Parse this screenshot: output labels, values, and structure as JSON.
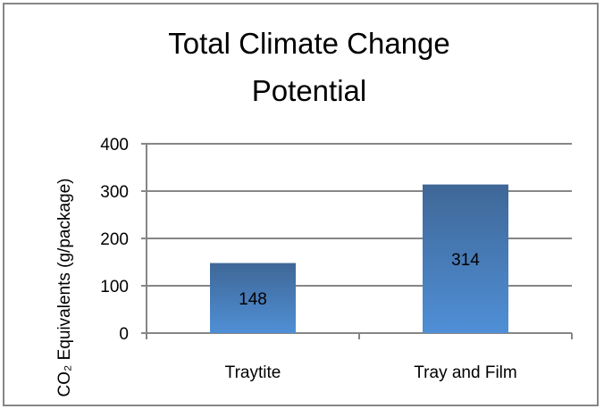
{
  "chart_data": {
    "type": "bar",
    "title_lines": [
      "Total Climate Change",
      "Potential"
    ],
    "ylabel": "CO₂ Equivalents (g/package)",
    "categories": [
      "Traytite",
      "Tray and Film"
    ],
    "values": [
      148,
      314
    ],
    "data_labels": [
      "148",
      "314"
    ],
    "ylim": [
      0,
      400
    ],
    "yticks": [
      0,
      100,
      200,
      300,
      400
    ],
    "ytick_labels": [
      "0",
      "100",
      "200",
      "300",
      "400"
    ],
    "grid": true,
    "legend": "none",
    "colors": {
      "bar_top": "#3f6797",
      "bar_bottom": "#4f8fd6",
      "grid": "#868686",
      "frame": "#868686"
    }
  }
}
